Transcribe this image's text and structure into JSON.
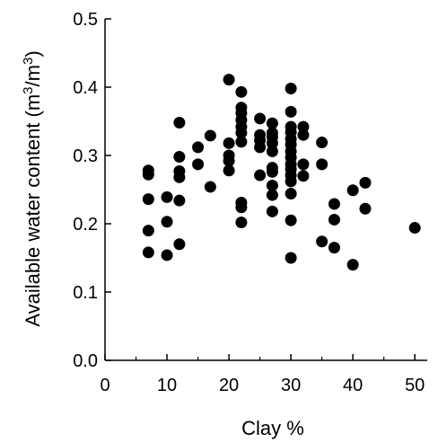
{
  "chart_data": {
    "type": "scatter",
    "xlabel": "Clay %",
    "ylabel": {
      "pre": "Available water content (m",
      "sup1": "3",
      "mid": "/m",
      "sup2": "3",
      "post": ")"
    },
    "xlim": [
      0,
      52
    ],
    "ylim": [
      0,
      0.5
    ],
    "xticks": [
      0,
      10,
      20,
      30,
      40,
      50
    ],
    "xticklabels": [
      "0",
      "10",
      "20",
      "30",
      "40",
      "50"
    ],
    "xminor": [
      5,
      15,
      25,
      35,
      45
    ],
    "yticks": [
      0.0,
      0.1,
      0.2,
      0.3,
      0.4,
      0.5
    ],
    "yticklabels": [
      "0.0",
      "0.1",
      "0.2",
      "0.3",
      "0.4",
      "0.5"
    ],
    "grid": false,
    "marker_color": "#000000",
    "points": [
      [
        7,
        0.278
      ],
      [
        7,
        0.272
      ],
      [
        7,
        0.236
      ],
      [
        7,
        0.19
      ],
      [
        7,
        0.158
      ],
      [
        10,
        0.239
      ],
      [
        10,
        0.203
      ],
      [
        10,
        0.154
      ],
      [
        12,
        0.348
      ],
      [
        12,
        0.298
      ],
      [
        12,
        0.277
      ],
      [
        12,
        0.268
      ],
      [
        12,
        0.234
      ],
      [
        12,
        0.17
      ],
      [
        15,
        0.312
      ],
      [
        15,
        0.287
      ],
      [
        17,
        0.329
      ],
      [
        17,
        0.254
      ],
      [
        20,
        0.411
      ],
      [
        20,
        0.318
      ],
      [
        20,
        0.3
      ],
      [
        20,
        0.292
      ],
      [
        20,
        0.278
      ],
      [
        22,
        0.393
      ],
      [
        22,
        0.37
      ],
      [
        22,
        0.362
      ],
      [
        22,
        0.352
      ],
      [
        22,
        0.342
      ],
      [
        22,
        0.333
      ],
      [
        22,
        0.32
      ],
      [
        22,
        0.231
      ],
      [
        22,
        0.224
      ],
      [
        22,
        0.202
      ],
      [
        25,
        0.354
      ],
      [
        25,
        0.33
      ],
      [
        25,
        0.322
      ],
      [
        25,
        0.312
      ],
      [
        25,
        0.271
      ],
      [
        27,
        0.347
      ],
      [
        27,
        0.333
      ],
      [
        27,
        0.327
      ],
      [
        27,
        0.318
      ],
      [
        27,
        0.306
      ],
      [
        27,
        0.282
      ],
      [
        27,
        0.276
      ],
      [
        27,
        0.256
      ],
      [
        27,
        0.242
      ],
      [
        27,
        0.218
      ],
      [
        30,
        0.398
      ],
      [
        30,
        0.364
      ],
      [
        30,
        0.342
      ],
      [
        30,
        0.334
      ],
      [
        30,
        0.324
      ],
      [
        30,
        0.316
      ],
      [
        30,
        0.306
      ],
      [
        30,
        0.297
      ],
      [
        30,
        0.287
      ],
      [
        30,
        0.28
      ],
      [
        30,
        0.271
      ],
      [
        30,
        0.262
      ],
      [
        30,
        0.244
      ],
      [
        30,
        0.205
      ],
      [
        30,
        0.15
      ],
      [
        32,
        0.342
      ],
      [
        32,
        0.33
      ],
      [
        32,
        0.287
      ],
      [
        32,
        0.27
      ],
      [
        35,
        0.319
      ],
      [
        35,
        0.287
      ],
      [
        35,
        0.174
      ],
      [
        37,
        0.229
      ],
      [
        37,
        0.206
      ],
      [
        37,
        0.165
      ],
      [
        40,
        0.249
      ],
      [
        40,
        0.14
      ],
      [
        42,
        0.26
      ],
      [
        42,
        0.222
      ],
      [
        50,
        0.194
      ]
    ]
  }
}
